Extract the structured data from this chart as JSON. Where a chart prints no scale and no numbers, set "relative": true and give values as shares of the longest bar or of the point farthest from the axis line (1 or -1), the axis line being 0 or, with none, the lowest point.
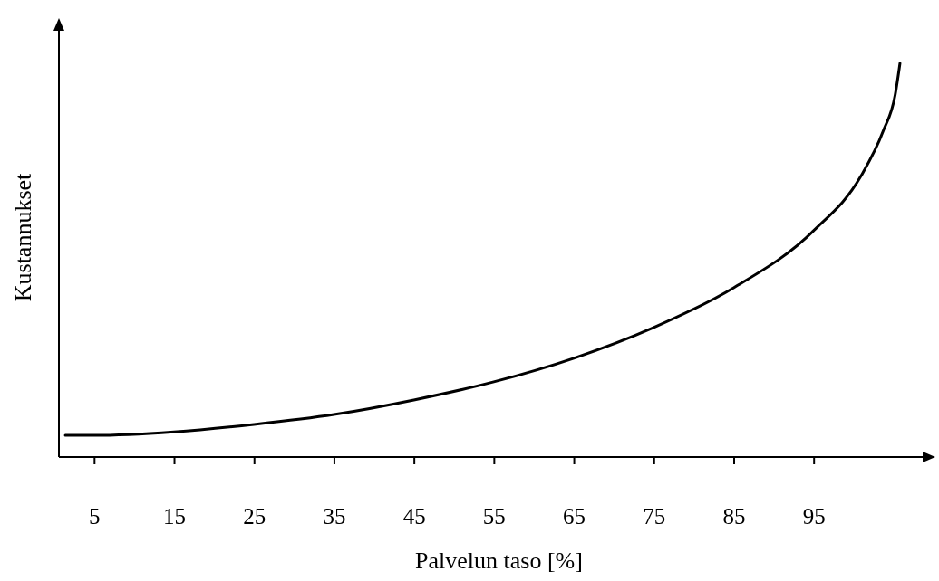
{
  "chart_data": {
    "type": "line",
    "xlabel": "Palvelun taso [%]",
    "ylabel": "Kustannukset",
    "relative": true,
    "xlim": [
      0.6,
      110
    ],
    "xticks": [
      5,
      15,
      25,
      35,
      45,
      55,
      65,
      75,
      85,
      95
    ],
    "grid": false,
    "legend": false,
    "marker": "none",
    "line_style": "solid",
    "series": [
      {
        "color": "#000000",
        "x": [
          1.4,
          5,
          15,
          25,
          35,
          45,
          55,
          65,
          75,
          85,
          95,
          100.9,
          103.7,
          105.2,
          105.8
        ],
        "values": [
          0.055,
          0.055,
          0.064,
          0.083,
          0.108,
          0.145,
          0.191,
          0.251,
          0.329,
          0.43,
          0.575,
          0.713,
          0.828,
          0.92,
          1.0
        ]
      }
    ]
  }
}
